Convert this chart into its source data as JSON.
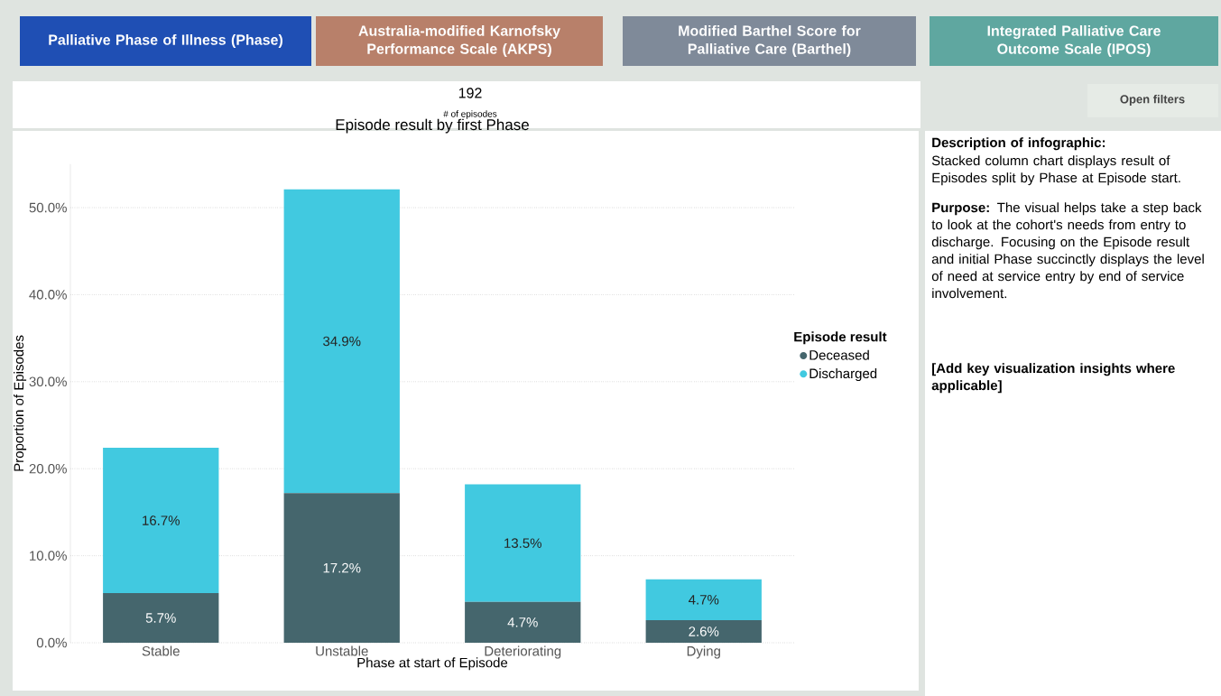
{
  "chart_data": {
    "type": "bar",
    "stacked": true,
    "title": "Episode result by first Phase",
    "xlabel": "Phase at start of Episode",
    "ylabel": "Proportion of Episodes",
    "legend_title": "Episode result",
    "categories": [
      "Stable",
      "Unstable",
      "Deteriorating",
      "Dying"
    ],
    "series": [
      {
        "name": "Deceased",
        "color": "#45666d",
        "values": [
          5.7,
          17.2,
          4.7,
          2.6
        ],
        "value_labels": [
          "5.7%",
          "17.2%",
          "4.7%",
          "2.6%"
        ]
      },
      {
        "name": "Discharged",
        "color": "#41c9e0",
        "values": [
          16.7,
          34.9,
          13.5,
          4.7
        ],
        "value_labels": [
          "16.7%",
          "34.9%",
          "13.5%",
          "4.7%"
        ]
      }
    ],
    "ylim": [
      0,
      55
    ],
    "yticks": [
      {
        "value": 0,
        "label": "0.0%"
      },
      {
        "value": 10,
        "label": "10.0%"
      },
      {
        "value": 20,
        "label": "20.0%"
      },
      {
        "value": 30,
        "label": "30.0%"
      },
      {
        "value": 40,
        "label": "40.0%"
      },
      {
        "value": 50,
        "label": "50.0%"
      }
    ],
    "grid": "y",
    "legend": "right",
    "annotations": [
      "Palliative Phase of Illness (Phase)",
      "Australia-modified Karnofsky Performance Scale (AKPS)",
      "Modified Barthel Score for Palliative Care (Barthel)",
      "Integrated Palliative Care Outcome Scale (IPOS)",
      "192",
      "# of episodes",
      "Open filters",
      "Description of infographic:",
      "Stacked column chart displays result of Episodes split by Phase at Episode start.",
      "**Purpose:** The visual helps take a step back to look at the cohort's needs from entry to discharge. Focusing on the Episode result and initial Phase succinctly displays the level of need at service entry by end of service involvement.",
      "[Add key visualization insights where applicable]"
    ]
  }
}
